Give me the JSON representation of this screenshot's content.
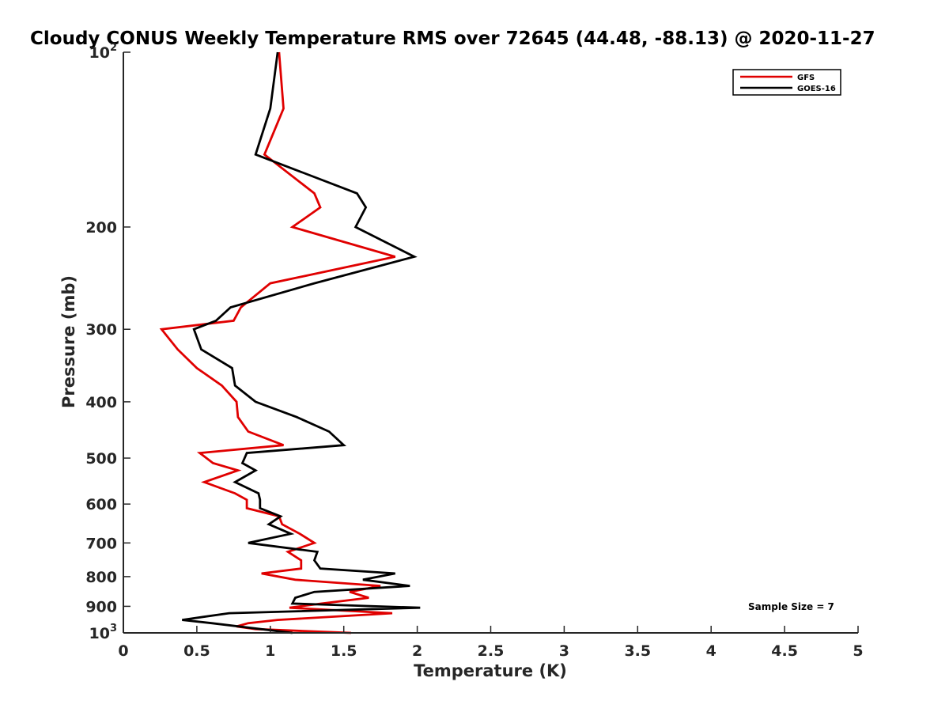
{
  "chart_data": {
    "type": "line",
    "title": "Cloudy CONUS Weekly Temperature RMS over 72645 (44.48, -88.13) @ 2020-11-27",
    "xlabel": "Temperature (K)",
    "ylabel": "Pressure (mb)",
    "xlim": [
      0,
      5
    ],
    "ylim": [
      100,
      1000
    ],
    "y_scale": "log",
    "y_reversed": true,
    "x_ticks": [
      0,
      0.5,
      1,
      1.5,
      2,
      2.5,
      3,
      3.5,
      4,
      4.5,
      5
    ],
    "x_tick_labels": [
      "0",
      "0.5",
      "1",
      "1.5",
      "2",
      "2.5",
      "3",
      "3.5",
      "4",
      "4.5",
      "5"
    ],
    "y_ticks": [
      100,
      200,
      300,
      400,
      500,
      600,
      700,
      800,
      900,
      1000
    ],
    "y_tick_labels": [
      {
        "base": "10",
        "exp": "2"
      },
      {
        "base": "200"
      },
      {
        "base": "300"
      },
      {
        "base": "400"
      },
      {
        "base": "500"
      },
      {
        "base": "600"
      },
      {
        "base": "700"
      },
      {
        "base": "800"
      },
      {
        "base": "900"
      },
      {
        "base": "10",
        "exp": "3"
      }
    ],
    "grid": false,
    "legend_position": "top-right",
    "annotation": "Sample Size = 7",
    "series": [
      {
        "name": "GFS",
        "color": "#e00000",
        "points": [
          [
            1.06,
            100
          ],
          [
            1.09,
            125
          ],
          [
            0.96,
            150
          ],
          [
            1.3,
            175
          ],
          [
            1.34,
            185
          ],
          [
            1.15,
            200
          ],
          [
            1.85,
            225
          ],
          [
            1.0,
            250
          ],
          [
            0.8,
            275
          ],
          [
            0.75,
            290
          ],
          [
            0.26,
            300
          ],
          [
            0.37,
            325
          ],
          [
            0.5,
            350
          ],
          [
            0.67,
            375
          ],
          [
            0.77,
            400
          ],
          [
            0.78,
            425
          ],
          [
            0.85,
            450
          ],
          [
            1.09,
            475
          ],
          [
            0.52,
            490
          ],
          [
            0.61,
            510
          ],
          [
            0.78,
            525
          ],
          [
            0.55,
            550
          ],
          [
            0.76,
            575
          ],
          [
            0.84,
            590
          ],
          [
            0.84,
            610
          ],
          [
            1.06,
            630
          ],
          [
            1.08,
            650
          ],
          [
            1.2,
            675
          ],
          [
            1.3,
            700
          ],
          [
            1.12,
            725
          ],
          [
            1.21,
            750
          ],
          [
            1.21,
            775
          ],
          [
            0.94,
            790
          ],
          [
            1.17,
            810
          ],
          [
            1.75,
            830
          ],
          [
            1.54,
            850
          ],
          [
            1.67,
            870
          ],
          [
            1.35,
            890
          ],
          [
            1.13,
            905
          ],
          [
            1.83,
            925
          ],
          [
            1.05,
            950
          ],
          [
            0.85,
            962
          ],
          [
            0.77,
            975
          ],
          [
            0.9,
            985
          ],
          [
            1.55,
            1000
          ]
        ]
      },
      {
        "name": "GOES-16",
        "color": "#000000",
        "points": [
          [
            1.05,
            100
          ],
          [
            1.0,
            125
          ],
          [
            0.9,
            150
          ],
          [
            1.59,
            175
          ],
          [
            1.65,
            185
          ],
          [
            1.58,
            200
          ],
          [
            1.98,
            225
          ],
          [
            1.3,
            250
          ],
          [
            0.73,
            275
          ],
          [
            0.63,
            290
          ],
          [
            0.48,
            300
          ],
          [
            0.53,
            325
          ],
          [
            0.74,
            350
          ],
          [
            0.76,
            375
          ],
          [
            0.9,
            400
          ],
          [
            1.18,
            425
          ],
          [
            1.4,
            450
          ],
          [
            1.5,
            475
          ],
          [
            0.84,
            490
          ],
          [
            0.81,
            510
          ],
          [
            0.9,
            525
          ],
          [
            0.76,
            550
          ],
          [
            0.92,
            575
          ],
          [
            0.93,
            590
          ],
          [
            0.93,
            610
          ],
          [
            1.07,
            630
          ],
          [
            0.99,
            650
          ],
          [
            1.14,
            675
          ],
          [
            0.85,
            700
          ],
          [
            1.32,
            725
          ],
          [
            1.3,
            750
          ],
          [
            1.34,
            775
          ],
          [
            1.85,
            790
          ],
          [
            1.63,
            810
          ],
          [
            1.95,
            830
          ],
          [
            1.3,
            850
          ],
          [
            1.17,
            870
          ],
          [
            1.15,
            890
          ],
          [
            2.02,
            905
          ],
          [
            0.72,
            925
          ],
          [
            0.4,
            950
          ],
          [
            0.6,
            962
          ],
          [
            1.15,
            1000
          ]
        ]
      }
    ]
  }
}
